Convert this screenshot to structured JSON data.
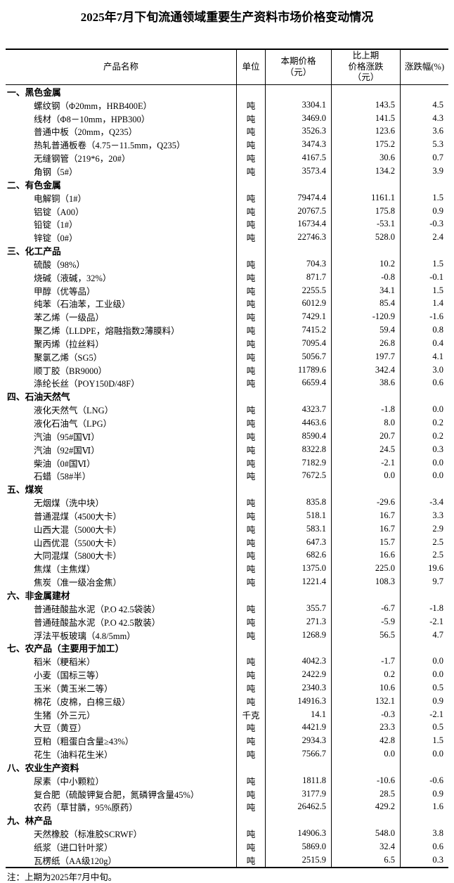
{
  "title": "2025年7月下旬流通领域重要生产资料市场价格变动情况",
  "note": "注：上期为2025年7月中旬。",
  "table": {
    "headers": {
      "product": "产品名称",
      "unit": "单位",
      "price": "本期价格\n（元）",
      "change": "比上期\n价格涨跌\n（元）",
      "pct": "涨跌幅(%)"
    },
    "sections": [
      {
        "name": "一、黑色金属",
        "items": [
          {
            "name": "螺纹钢（Φ20mm，HRB400E）",
            "unit": "吨",
            "price": "3304.1",
            "change": "143.5",
            "pct": "4.5"
          },
          {
            "name": "线材（Φ8－10mm，HPB300）",
            "unit": "吨",
            "price": "3469.0",
            "change": "141.5",
            "pct": "4.3"
          },
          {
            "name": "普通中板（20mm，Q235）",
            "unit": "吨",
            "price": "3526.3",
            "change": "123.6",
            "pct": "3.6"
          },
          {
            "name": "热轧普通板卷（4.75－11.5mm，Q235）",
            "unit": "吨",
            "price": "3474.3",
            "change": "175.2",
            "pct": "5.3"
          },
          {
            "name": "无缝钢管（219*6，20#）",
            "unit": "吨",
            "price": "4167.5",
            "change": "30.6",
            "pct": "0.7"
          },
          {
            "name": "角钢（5#）",
            "unit": "吨",
            "price": "3573.4",
            "change": "134.2",
            "pct": "3.9"
          }
        ]
      },
      {
        "name": "二、有色金属",
        "items": [
          {
            "name": "电解铜（1#）",
            "unit": "吨",
            "price": "79474.4",
            "change": "1161.1",
            "pct": "1.5"
          },
          {
            "name": "铝锭（A00）",
            "unit": "吨",
            "price": "20767.5",
            "change": "175.8",
            "pct": "0.9"
          },
          {
            "name": "铅锭（1#）",
            "unit": "吨",
            "price": "16734.4",
            "change": "-53.1",
            "pct": "-0.3"
          },
          {
            "name": "锌锭（0#）",
            "unit": "吨",
            "price": "22746.3",
            "change": "528.0",
            "pct": "2.4"
          }
        ]
      },
      {
        "name": "三、化工产品",
        "items": [
          {
            "name": "硫酸（98%）",
            "unit": "吨",
            "price": "704.3",
            "change": "10.2",
            "pct": "1.5"
          },
          {
            "name": "烧碱（液碱，32%）",
            "unit": "吨",
            "price": "871.7",
            "change": "-0.8",
            "pct": "-0.1"
          },
          {
            "name": "甲醇（优等品）",
            "unit": "吨",
            "price": "2255.5",
            "change": "34.1",
            "pct": "1.5"
          },
          {
            "name": "纯苯（石油苯，工业级）",
            "unit": "吨",
            "price": "6012.9",
            "change": "85.4",
            "pct": "1.4"
          },
          {
            "name": "苯乙烯（一级品）",
            "unit": "吨",
            "price": "7429.1",
            "change": "-120.9",
            "pct": "-1.6"
          },
          {
            "name": "聚乙烯（LLDPE，熔融指数2薄膜料）",
            "unit": "吨",
            "price": "7415.2",
            "change": "59.4",
            "pct": "0.8"
          },
          {
            "name": "聚丙烯（拉丝料）",
            "unit": "吨",
            "price": "7095.4",
            "change": "26.8",
            "pct": "0.4"
          },
          {
            "name": "聚氯乙烯（SG5）",
            "unit": "吨",
            "price": "5056.7",
            "change": "197.7",
            "pct": "4.1"
          },
          {
            "name": "顺丁胶（BR9000）",
            "unit": "吨",
            "price": "11789.6",
            "change": "342.4",
            "pct": "3.0"
          },
          {
            "name": "涤纶长丝（POY150D/48F）",
            "unit": "吨",
            "price": "6659.4",
            "change": "38.6",
            "pct": "0.6"
          }
        ]
      },
      {
        "name": "四、石油天然气",
        "items": [
          {
            "name": "液化天然气（LNG）",
            "unit": "吨",
            "price": "4323.7",
            "change": "-1.8",
            "pct": "0.0"
          },
          {
            "name": "液化石油气（LPG）",
            "unit": "吨",
            "price": "4463.6",
            "change": "8.0",
            "pct": "0.2"
          },
          {
            "name": "汽油（95#国Ⅵ）",
            "unit": "吨",
            "price": "8590.4",
            "change": "20.7",
            "pct": "0.2"
          },
          {
            "name": "汽油（92#国Ⅵ）",
            "unit": "吨",
            "price": "8322.8",
            "change": "24.5",
            "pct": "0.3"
          },
          {
            "name": "柴油（0#国Ⅵ）",
            "unit": "吨",
            "price": "7182.9",
            "change": "-2.1",
            "pct": "0.0"
          },
          {
            "name": "石蜡（58#半）",
            "unit": "吨",
            "price": "7672.5",
            "change": "0.0",
            "pct": "0.0"
          }
        ]
      },
      {
        "name": "五、煤炭",
        "items": [
          {
            "name": "无烟煤（洗中块）",
            "unit": "吨",
            "price": "835.8",
            "change": "-29.6",
            "pct": "-3.4"
          },
          {
            "name": "普通混煤（4500大卡）",
            "unit": "吨",
            "price": "518.1",
            "change": "16.7",
            "pct": "3.3"
          },
          {
            "name": "山西大混（5000大卡）",
            "unit": "吨",
            "price": "583.1",
            "change": "16.7",
            "pct": "2.9"
          },
          {
            "name": "山西优混（5500大卡）",
            "unit": "吨",
            "price": "647.3",
            "change": "15.7",
            "pct": "2.5"
          },
          {
            "name": "大同混煤（5800大卡）",
            "unit": "吨",
            "price": "682.6",
            "change": "16.6",
            "pct": "2.5"
          },
          {
            "name": "焦煤（主焦煤）",
            "unit": "吨",
            "price": "1375.0",
            "change": "225.0",
            "pct": "19.6"
          },
          {
            "name": "焦炭（准一级冶金焦）",
            "unit": "吨",
            "price": "1221.4",
            "change": "108.3",
            "pct": "9.7"
          }
        ]
      },
      {
        "name": "六、非金属建材",
        "items": [
          {
            "name": "普通硅酸盐水泥（P.O 42.5袋装）",
            "unit": "吨",
            "price": "355.7",
            "change": "-6.7",
            "pct": "-1.8"
          },
          {
            "name": "普通硅酸盐水泥（P.O 42.5散装）",
            "unit": "吨",
            "price": "271.3",
            "change": "-5.9",
            "pct": "-2.1"
          },
          {
            "name": "浮法平板玻璃（4.8/5mm）",
            "unit": "吨",
            "price": "1268.9",
            "change": "56.5",
            "pct": "4.7"
          }
        ]
      },
      {
        "name": "七、农产品（主要用于加工）",
        "items": [
          {
            "name": "稻米（粳稻米）",
            "unit": "吨",
            "price": "4042.3",
            "change": "-1.7",
            "pct": "0.0"
          },
          {
            "name": "小麦（国标三等）",
            "unit": "吨",
            "price": "2422.9",
            "change": "0.2",
            "pct": "0.0"
          },
          {
            "name": "玉米（黄玉米二等）",
            "unit": "吨",
            "price": "2340.3",
            "change": "10.6",
            "pct": "0.5"
          },
          {
            "name": "棉花（皮棉，白棉三级）",
            "unit": "吨",
            "price": "14916.3",
            "change": "132.1",
            "pct": "0.9"
          },
          {
            "name": "生猪（外三元）",
            "unit": "千克",
            "price": "14.1",
            "change": "-0.3",
            "pct": "-2.1"
          },
          {
            "name": "大豆（黄豆）",
            "unit": "吨",
            "price": "4421.9",
            "change": "23.3",
            "pct": "0.5"
          },
          {
            "name": "豆粕（粗蛋白含量≥43%）",
            "unit": "吨",
            "price": "2934.3",
            "change": "42.8",
            "pct": "1.5"
          },
          {
            "name": "花生（油料花生米）",
            "unit": "吨",
            "price": "7566.7",
            "change": "0.0",
            "pct": "0.0"
          }
        ]
      },
      {
        "name": "八、农业生产资料",
        "items": [
          {
            "name": "尿素（中小颗粒）",
            "unit": "吨",
            "price": "1811.8",
            "change": "-10.6",
            "pct": "-0.6"
          },
          {
            "name": "复合肥（硫酸钾复合肥，氮磷钾含量45%）",
            "unit": "吨",
            "price": "3177.9",
            "change": "28.5",
            "pct": "0.9"
          },
          {
            "name": "农药（草甘膦，95%原药）",
            "unit": "吨",
            "price": "26462.5",
            "change": "429.2",
            "pct": "1.6"
          }
        ]
      },
      {
        "name": "九、林产品",
        "items": [
          {
            "name": "天然橡胶（标准胶SCRWF）",
            "unit": "吨",
            "price": "14906.3",
            "change": "548.0",
            "pct": "3.8"
          },
          {
            "name": "纸浆（进口针叶浆）",
            "unit": "吨",
            "price": "5869.0",
            "change": "32.4",
            "pct": "0.6"
          },
          {
            "name": "瓦楞纸（AA级120g）",
            "unit": "吨",
            "price": "2515.9",
            "change": "6.5",
            "pct": "0.3"
          }
        ]
      }
    ]
  }
}
